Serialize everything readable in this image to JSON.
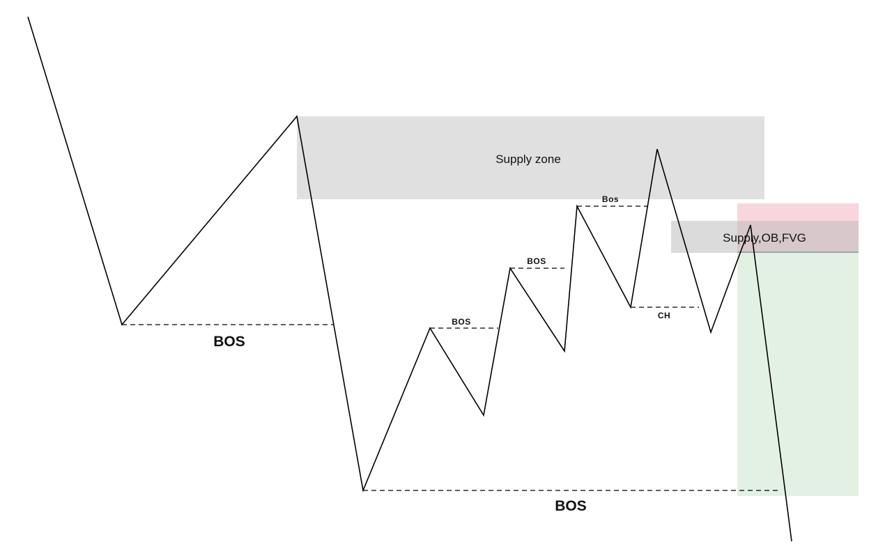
{
  "diagram": {
    "zones": {
      "supply_zone_label": "Supply zone",
      "entry_zone_label": "Supply,OB,FVG"
    },
    "labels": {
      "bos_main_left": "BOS",
      "bos_main_bottom": "BOS",
      "bos_1": "BOS",
      "bos_2": "BOS",
      "bos_3": "Bos",
      "choch": "CH"
    },
    "colors": {
      "line": "#000000",
      "supply_zone": "#e0e0e0",
      "stop_loss_zone": "#f9d6dc",
      "take_profit_zone": "#e3f1e3",
      "entry_zone": "#d9d9d9"
    }
  }
}
